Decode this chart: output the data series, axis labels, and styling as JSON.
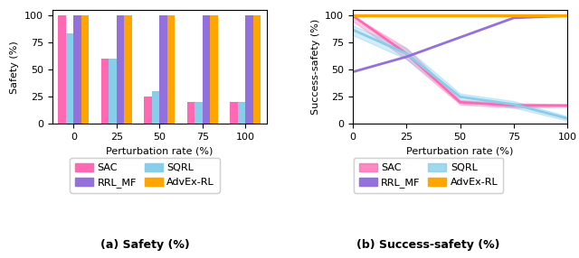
{
  "bar_categories": [
    0,
    25,
    50,
    75,
    100
  ],
  "bar_data": {
    "SAC": [
      100,
      60,
      25,
      20,
      20
    ],
    "SQRL": [
      84,
      60,
      30,
      20,
      20
    ],
    "RRL_MF": [
      100,
      100,
      100,
      100,
      100
    ],
    "AdvEx_RL": [
      100,
      100,
      100,
      100,
      100
    ]
  },
  "line_x": [
    0,
    25,
    50,
    75,
    100
  ],
  "line_data": {
    "SAC": [
      100,
      65,
      20,
      17,
      17
    ],
    "SQRL": [
      87,
      65,
      25,
      18,
      5
    ],
    "RRL_MF": [
      48,
      62,
      80,
      98,
      100
    ],
    "AdvEx_RL": [
      100,
      100,
      100,
      100,
      100
    ]
  },
  "line_fill": {
    "SAC": {
      "upper": [
        100,
        70,
        22,
        19,
        18
      ],
      "lower": [
        95,
        60,
        18,
        15,
        16
      ]
    },
    "SQRL": {
      "upper": [
        91,
        70,
        28,
        21,
        7
      ],
      "lower": [
        82,
        60,
        22,
        15,
        3
      ]
    }
  },
  "colors": {
    "SAC": "#FF69B4",
    "SQRL": "#87CEEB",
    "RRL_MF": "#9370DB",
    "AdvEx_RL": "#FFA500"
  },
  "bar_ylabel": "Safety (%)",
  "line_ylabel": "Success-safety (%)",
  "xlabel": "Perturbation rate (%)",
  "bar_ylim": [
    0,
    105
  ],
  "line_ylim": [
    0,
    105
  ],
  "caption_a": "(a) Safety (%)",
  "caption_b": "(b) Success-safety (%)"
}
